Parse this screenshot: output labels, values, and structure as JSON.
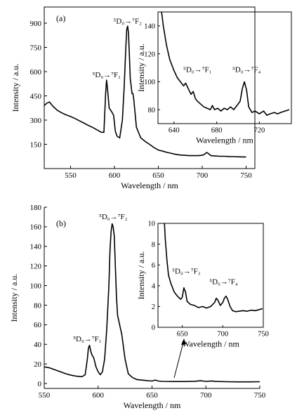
{
  "colors": {
    "line": "#000000",
    "background": "#ffffff"
  },
  "chart_data": [
    {
      "id": "a-main",
      "type": "line",
      "panel_label": "(a)",
      "xlabel": "Wavelength / nm",
      "ylabel": "Intensity / a.u.",
      "xlim": [
        520,
        760
      ],
      "ylim": [
        0,
        1000
      ],
      "x_ticks": [
        550,
        600,
        650,
        700,
        750
      ],
      "y_ticks": [
        150,
        300,
        450,
        600,
        750,
        900
      ],
      "grid": false,
      "annotations": [
        {
          "text": "⁵D₀→⁷F₁",
          "x": 591,
          "y": 548
        },
        {
          "text": "⁵D₀→⁷F₂",
          "x": 615,
          "y": 880
        }
      ],
      "series": [
        {
          "values": [
            [
              520,
              390
            ],
            [
              523,
              405
            ],
            [
              526,
              412
            ],
            [
              530,
              385
            ],
            [
              535,
              360
            ],
            [
              540,
              345
            ],
            [
              545,
              332
            ],
            [
              550,
              322
            ],
            [
              555,
              310
            ],
            [
              560,
              296
            ],
            [
              565,
              282
            ],
            [
              570,
              268
            ],
            [
              575,
              255
            ],
            [
              580,
              240
            ],
            [
              585,
              225
            ],
            [
              588,
              225
            ],
            [
              590,
              470
            ],
            [
              591,
              548
            ],
            [
              592,
              500
            ],
            [
              594,
              375
            ],
            [
              597,
              350
            ],
            [
              599,
              330
            ],
            [
              601,
              230
            ],
            [
              603,
              200
            ],
            [
              606,
              190
            ],
            [
              609,
              300
            ],
            [
              611,
              500
            ],
            [
              613,
              760
            ],
            [
              614,
              860
            ],
            [
              615,
              882
            ],
            [
              616,
              840
            ],
            [
              617,
              700
            ],
            [
              618,
              560
            ],
            [
              620,
              465
            ],
            [
              621,
              465
            ],
            [
              622,
              430
            ],
            [
              625,
              255
            ],
            [
              630,
              190
            ],
            [
              635,
              168
            ],
            [
              640,
              150
            ],
            [
              645,
              130
            ],
            [
              650,
              115
            ],
            [
              655,
              108
            ],
            [
              660,
              100
            ],
            [
              665,
              94
            ],
            [
              670,
              88
            ],
            [
              675,
              84
            ],
            [
              680,
              82
            ],
            [
              685,
              80
            ],
            [
              690,
              80
            ],
            [
              695,
              80
            ],
            [
              700,
              82
            ],
            [
              703,
              90
            ],
            [
              705,
              100
            ],
            [
              707,
              93
            ],
            [
              710,
              80
            ],
            [
              715,
              78
            ],
            [
              720,
              76
            ],
            [
              725,
              76
            ],
            [
              730,
              75
            ],
            [
              735,
              74
            ],
            [
              740,
              73
            ],
            [
              745,
              72
            ],
            [
              750,
              72
            ]
          ]
        }
      ]
    },
    {
      "id": "a-inset",
      "type": "line",
      "xlabel": "Wavelength / nm",
      "ylabel": "Intensity / a.u.",
      "xlim": [
        625,
        750
      ],
      "ylim": [
        70,
        150
      ],
      "x_ticks": [
        640,
        680,
        720
      ],
      "y_ticks": [
        80,
        100,
        120,
        140
      ],
      "annotations": [
        {
          "text": "⁵D₀→⁷F₁",
          "x": 662,
          "y": 105
        },
        {
          "text": "⁵D₀→⁷F₄",
          "x": 708,
          "y": 105
        }
      ],
      "series": [
        {
          "values": [
            [
              628,
              152
            ],
            [
              630,
              140
            ],
            [
              633,
              126
            ],
            [
              636,
              116
            ],
            [
              640,
              108
            ],
            [
              643,
              103
            ],
            [
              646,
              100
            ],
            [
              649,
              97
            ],
            [
              651,
              99
            ],
            [
              654,
              94
            ],
            [
              656,
              91
            ],
            [
              658,
              93
            ],
            [
              660,
              88
            ],
            [
              662,
              86
            ],
            [
              665,
              84
            ],
            [
              668,
              82
            ],
            [
              671,
              81
            ],
            [
              674,
              80
            ],
            [
              676,
              83
            ],
            [
              678,
              80
            ],
            [
              681,
              81
            ],
            [
              684,
              79
            ],
            [
              687,
              81
            ],
            [
              690,
              80
            ],
            [
              693,
              82
            ],
            [
              696,
              80
            ],
            [
              699,
              83
            ],
            [
              702,
              86
            ],
            [
              704,
              95
            ],
            [
              706,
              100
            ],
            [
              708,
              94
            ],
            [
              710,
              82
            ],
            [
              713,
              78
            ],
            [
              716,
              79
            ],
            [
              720,
              77
            ],
            [
              724,
              79
            ],
            [
              727,
              76
            ],
            [
              730,
              77
            ],
            [
              734,
              78
            ],
            [
              737,
              77
            ],
            [
              740,
              78
            ],
            [
              744,
              79
            ],
            [
              748,
              80
            ]
          ]
        }
      ]
    },
    {
      "id": "b-main",
      "type": "line",
      "panel_label": "(b)",
      "xlabel": "Wavelength / nm",
      "ylabel": "Intensity / a.u.",
      "xlim": [
        550,
        750
      ],
      "ylim": [
        -5,
        180
      ],
      "x_ticks": [
        550,
        600,
        650,
        700,
        750
      ],
      "y_ticks": [
        0,
        20,
        40,
        60,
        80,
        100,
        120,
        140,
        160,
        180
      ],
      "grid": false,
      "annotations": [
        {
          "text": "⁵D₀→⁷F₁",
          "x": 590,
          "y": 40
        },
        {
          "text": "⁵D₀→⁷F₂",
          "x": 614,
          "y": 165
        }
      ],
      "series": [
        {
          "values": [
            [
              550,
              17
            ],
            [
              555,
              16
            ],
            [
              560,
              14
            ],
            [
              565,
              12
            ],
            [
              570,
              10
            ],
            [
              575,
              8.5
            ],
            [
              580,
              7.5
            ],
            [
              585,
              7
            ],
            [
              588,
              9
            ],
            [
              590,
              25
            ],
            [
              591,
              36
            ],
            [
              592,
              39
            ],
            [
              593,
              34
            ],
            [
              594,
              30
            ],
            [
              596,
              26
            ],
            [
              598,
              17
            ],
            [
              600,
              12
            ],
            [
              602,
              9
            ],
            [
              604,
              12
            ],
            [
              606,
              25
            ],
            [
              608,
              55
            ],
            [
              610,
              100
            ],
            [
              611,
              135
            ],
            [
              612,
              155
            ],
            [
              613,
              163
            ],
            [
              614,
              160
            ],
            [
              615,
              150
            ],
            [
              616,
              120
            ],
            [
              617,
              90
            ],
            [
              618,
              70
            ],
            [
              620,
              60
            ],
            [
              622,
              50
            ],
            [
              625,
              25
            ],
            [
              628,
              10
            ],
            [
              632,
              6
            ],
            [
              636,
              4
            ],
            [
              640,
              3.5
            ],
            [
              645,
              3
            ],
            [
              650,
              2.5
            ],
            [
              653,
              3.5
            ],
            [
              656,
              2.5
            ],
            [
              660,
              2.2
            ],
            [
              670,
              2
            ],
            [
              680,
              2
            ],
            [
              690,
              2.3
            ],
            [
              695,
              2.8
            ],
            [
              700,
              2.2
            ],
            [
              705,
              2.6
            ],
            [
              710,
              2.1
            ],
            [
              720,
              1.8
            ],
            [
              730,
              1.7
            ],
            [
              740,
              1.7
            ],
            [
              750,
              1.8
            ]
          ]
        }
      ]
    },
    {
      "id": "b-inset",
      "type": "line",
      "xlabel": "Wavelength / nm",
      "ylabel": "Intensity / a.u.",
      "xlim": [
        620,
        750
      ],
      "ylim": [
        0,
        10
      ],
      "x_ticks": [
        650,
        700,
        750
      ],
      "y_ticks": [
        0,
        2,
        4,
        6,
        8,
        10
      ],
      "annotations": [
        {
          "text": "⁵D₀→⁷F₃",
          "x": 655,
          "y": 4.9
        },
        {
          "text": "⁵D₀→⁷F₄",
          "x": 701,
          "y": 3.9
        }
      ],
      "series": [
        {
          "values": [
            [
              628,
              10
            ],
            [
              629,
              8.5
            ],
            [
              631,
              6.5
            ],
            [
              633,
              5
            ],
            [
              636,
              4.2
            ],
            [
              640,
              3.4
            ],
            [
              644,
              3
            ],
            [
              648,
              2.7
            ],
            [
              650,
              2.9
            ],
            [
              652,
              3.8
            ],
            [
              654,
              3.4
            ],
            [
              656,
              2.5
            ],
            [
              660,
              2.2
            ],
            [
              665,
              2.1
            ],
            [
              670,
              1.9
            ],
            [
              675,
              2
            ],
            [
              680,
              1.85
            ],
            [
              685,
              2
            ],
            [
              690,
              2.4
            ],
            [
              692,
              2.8
            ],
            [
              694,
              2.6
            ],
            [
              697,
              2.1
            ],
            [
              700,
              2.4
            ],
            [
              702,
              2.8
            ],
            [
              704,
              3
            ],
            [
              706,
              2.7
            ],
            [
              709,
              2
            ],
            [
              712,
              1.6
            ],
            [
              716,
              1.5
            ],
            [
              720,
              1.55
            ],
            [
              725,
              1.6
            ],
            [
              730,
              1.55
            ],
            [
              735,
              1.65
            ],
            [
              740,
              1.6
            ],
            [
              745,
              1.7
            ],
            [
              749,
              1.8
            ]
          ]
        }
      ]
    }
  ]
}
